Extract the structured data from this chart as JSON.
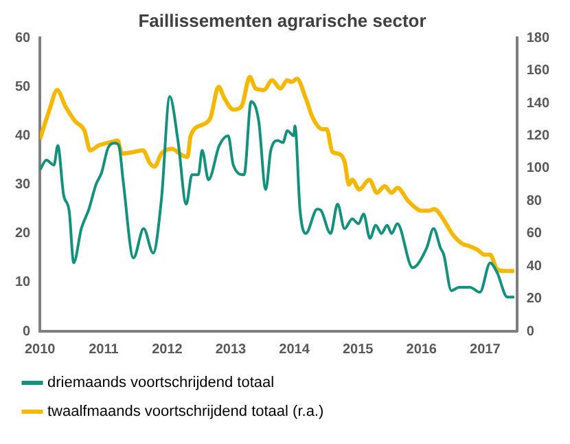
{
  "chart_data": {
    "type": "line",
    "title": "Faillissementen agrarische sector",
    "xlim": [
      2010,
      2017.5
    ],
    "xticks": [
      2010,
      2011,
      2012,
      2013,
      2014,
      2015,
      2016,
      2017
    ],
    "ylim": [
      0,
      60
    ],
    "yticks": [
      0,
      10,
      20,
      30,
      40,
      50,
      60
    ],
    "y2lim": [
      0,
      180
    ],
    "y2ticks": [
      0,
      20,
      40,
      60,
      80,
      100,
      120,
      140,
      160,
      180
    ],
    "grid": false,
    "legend": "bottom",
    "marker": "none",
    "line_style": "solid",
    "series": [
      {
        "name": "driemaands voortschrijdend totaal",
        "color": "#13917d",
        "x": [
          2010.0,
          2010.1,
          2010.22,
          2010.28,
          2010.37,
          2010.46,
          2010.53,
          2010.65,
          2010.77,
          2010.88,
          2010.97,
          2011.07,
          2011.18,
          2011.24,
          2011.31,
          2011.47,
          2011.63,
          2011.78,
          2011.91,
          2012.04,
          2012.17,
          2012.3,
          2012.39,
          2012.49,
          2012.55,
          2012.65,
          2012.82,
          2012.96,
          2013.04,
          2013.21,
          2013.32,
          2013.44,
          2013.55,
          2013.63,
          2013.74,
          2013.82,
          2013.89,
          2013.99,
          2014.01,
          2014.09,
          2014.18,
          2014.36,
          2014.42,
          2014.57,
          2014.68,
          2014.79,
          2014.91,
          2015.01,
          2015.09,
          2015.19,
          2015.28,
          2015.37,
          2015.46,
          2015.53,
          2015.62,
          2015.86,
          2016.08,
          2016.19,
          2016.3,
          2016.35,
          2016.47,
          2016.59,
          2016.76,
          2016.92,
          2017.08,
          2017.19,
          2017.35,
          2017.46
        ],
        "values": [
          33,
          35,
          34,
          38,
          28,
          24.5,
          14,
          21,
          25,
          30,
          32.5,
          37.5,
          38.5,
          38,
          30.5,
          15,
          21,
          16,
          27,
          48,
          39,
          26,
          32,
          32,
          37,
          31,
          38,
          40,
          34,
          32,
          47,
          43,
          29,
          37,
          39,
          38.6,
          41,
          40,
          42,
          24.7,
          20,
          25,
          24.7,
          20,
          26,
          21,
          23,
          22,
          24,
          19,
          21.7,
          20,
          21.7,
          20,
          22,
          13,
          17,
          21,
          17,
          15.7,
          8.3,
          9,
          9,
          8,
          14,
          12,
          7,
          7
        ]
      },
      {
        "name": "twaalfmaands voortschrijdend totaal (r.a.)",
        "color": "#f5b800",
        "axis": "y2",
        "x": [
          2010.0,
          2010.15,
          2010.27,
          2010.4,
          2010.55,
          2010.7,
          2010.79,
          2010.92,
          2011.11,
          2011.22,
          2011.29,
          2011.47,
          2011.62,
          2011.73,
          2011.8,
          2011.91,
          2012.07,
          2012.24,
          2012.32,
          2012.37,
          2012.57,
          2012.68,
          2012.81,
          2012.9,
          2013.04,
          2013.17,
          2013.3,
          2013.39,
          2013.52,
          2013.65,
          2013.78,
          2013.89,
          2013.96,
          2014.04,
          2014.18,
          2014.29,
          2014.44,
          2014.51,
          2014.6,
          2014.69,
          2014.79,
          2014.86,
          2014.91,
          2015.02,
          2015.18,
          2015.3,
          2015.42,
          2015.53,
          2015.62,
          2015.79,
          2015.9,
          2015.99,
          2016.12,
          2016.2,
          2016.34,
          2016.48,
          2016.63,
          2016.77,
          2016.88,
          2016.99,
          2017.08,
          2017.19,
          2017.31,
          2017.46
        ],
        "values": [
          118,
          136,
          148,
          138,
          129,
          123,
          111,
          114,
          116,
          117,
          109,
          110,
          111,
          103,
          101,
          109,
          112,
          108,
          107,
          120,
          127,
          131,
          150,
          143,
          136,
          138,
          156,
          149,
          148,
          154,
          149,
          154,
          153,
          155,
          143,
          131,
          124,
          124,
          110,
          109,
          104,
          90,
          93,
          87,
          93,
          85,
          89,
          85,
          88,
          80,
          76,
          74,
          74,
          75,
          69,
          60,
          54,
          52,
          50,
          47,
          47,
          38,
          37,
          37
        ]
      }
    ]
  }
}
